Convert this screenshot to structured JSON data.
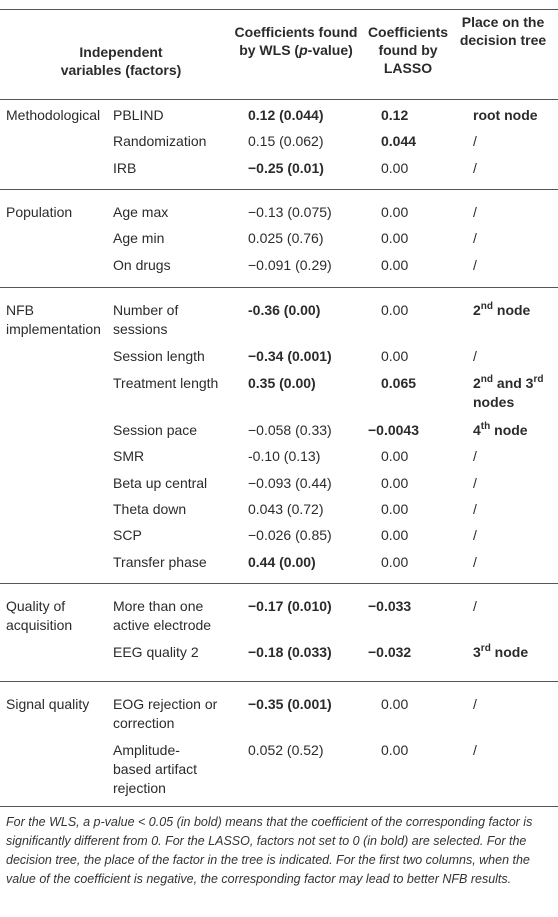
{
  "header": {
    "col0": "Independent variables (factors)",
    "col2_a": "Coefficients found by WLS",
    "col2_p": "p",
    "col2_b": "-value)",
    "col3": "Coefficients found by LASSO",
    "col4": "Place on the decision tree"
  },
  "groups": [
    {
      "name": "Methodological",
      "rows": [
        {
          "factor": "PBLIND",
          "wls": "0.12 (0.044)",
          "lasso": "0.12",
          "tree": "root node"
        },
        {
          "factor": "Randomization",
          "wls": "0.15 (0.062)",
          "lasso": "0.044",
          "tree": "/"
        },
        {
          "factor": "IRB",
          "wls": "−0.25 (0.01)",
          "lasso": "0.00",
          "tree": "/"
        }
      ]
    },
    {
      "name": "Population",
      "rows": [
        {
          "factor": "Age max",
          "wls": "−0.13 (0.075)",
          "lasso": "0.00",
          "tree": "/"
        },
        {
          "factor": "Age min",
          "wls": "0.025 (0.76)",
          "lasso": "0.00",
          "tree": "/"
        },
        {
          "factor": "On drugs",
          "wls": "−0.091 (0.29)",
          "lasso": "0.00",
          "tree": "/"
        }
      ]
    },
    {
      "name_l1": "NFB",
      "name_l2": "implementation",
      "rows": [
        {
          "factor_l1": "Number of",
          "factor_l2": "sessions",
          "wls": "-0.36 (0.00)",
          "lasso": "0.00",
          "tree_n": "2",
          "tree_sup": "nd",
          "tree_rest": " node"
        },
        {
          "factor": "Session length",
          "wls": "−0.34 (0.001)",
          "lasso": "0.00",
          "tree": "/"
        },
        {
          "factor": "Treatment length",
          "wls": "0.35 (0.00)",
          "lasso": "0.065",
          "tree_a": "2",
          "tree_a_sup": "nd",
          "tree_mid": " and 3",
          "tree_b_sup": "rd",
          "tree_l2": "nodes"
        },
        {
          "factor": "Session pace",
          "wls": "−0.058 (0.33)",
          "lasso": "−0.0043",
          "tree_n": "4",
          "tree_sup": "th",
          "tree_rest": " node"
        },
        {
          "factor": "SMR",
          "wls": "-0.10 (0.13)",
          "lasso": "0.00",
          "tree": "/"
        },
        {
          "factor": "Beta up central",
          "wls": "−0.093 (0.44)",
          "lasso": "0.00",
          "tree": "/"
        },
        {
          "factor": "Theta down",
          "wls": "0.043 (0.72)",
          "lasso": "0.00",
          "tree": "/"
        },
        {
          "factor": "SCP",
          "wls": "−0.026 (0.85)",
          "lasso": "0.00",
          "tree": "/"
        },
        {
          "factor": "Transfer phase",
          "wls": "0.44 (0.00)",
          "lasso": "0.00",
          "tree": "/"
        }
      ]
    },
    {
      "name_l1": "Quality of",
      "name_l2": "acquisition",
      "rows": [
        {
          "factor_l1": "More than one",
          "factor_l2": "active electrode",
          "wls": "−0.17 (0.010)",
          "lasso": "−0.033",
          "tree": "/"
        },
        {
          "factor": "EEG quality 2",
          "wls": "−0.18 (0.033)",
          "lasso": "−0.032",
          "tree_n": "3",
          "tree_sup": "rd",
          "tree_rest": " node"
        }
      ]
    },
    {
      "name": "Signal quality",
      "rows": [
        {
          "factor_l1": "EOG rejection or",
          "factor_l2": "correction",
          "wls": "−0.35 (0.001)",
          "lasso": "0.00",
          "tree": "/"
        },
        {
          "factor_l1": "Amplitude-",
          "factor_l2": "based artifact",
          "factor_l3": "rejection",
          "wls": "0.052 (0.52)",
          "lasso": "0.00",
          "tree": "/"
        }
      ]
    }
  ],
  "footnote": {
    "p1": "For the WLS, a p-value < 0.05 (in bold) means that the coefficient of the corresponding factor is significantly different from 0. For the LASSO, factors not set to 0 (in bold) are selected. For the decision tree, the place of the factor in the tree is indicated. For the first two columns, when the value of the coefficient is negative, the corresponding factor may lead to better NFB results."
  }
}
